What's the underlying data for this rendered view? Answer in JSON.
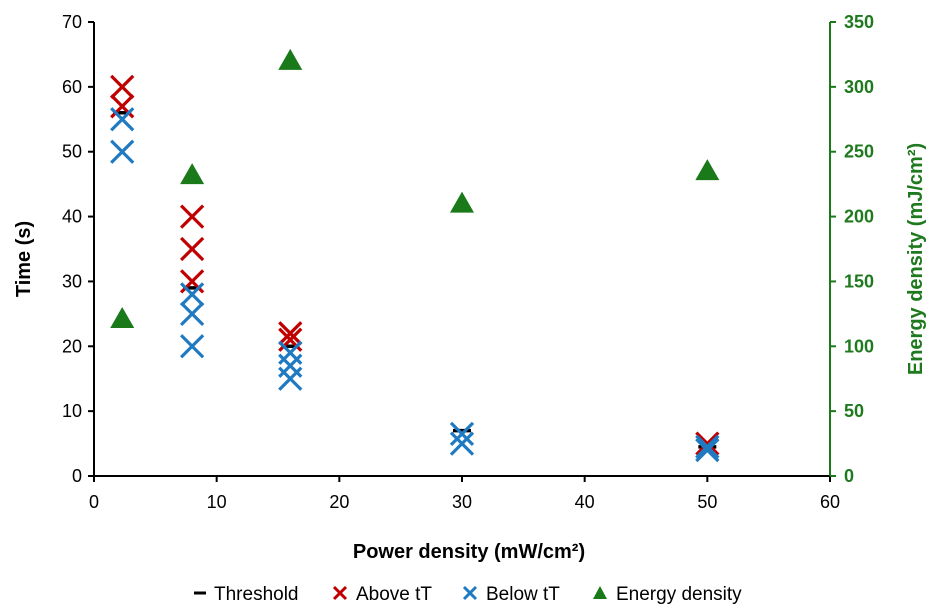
{
  "chart_data": {
    "type": "scatter",
    "xlabel": "Power density (mW/cm²)",
    "ylabel": "Time (s)",
    "y2label": "Energy density  (mJ/cm²)",
    "xlim": [
      0,
      60
    ],
    "ylim": [
      0,
      70
    ],
    "y2lim": [
      0,
      350
    ],
    "xticks": [
      "0",
      "10",
      "20",
      "30",
      "40",
      "50",
      "60"
    ],
    "yticks": [
      "0",
      "10",
      "20",
      "30",
      "40",
      "50",
      "60",
      "70"
    ],
    "y2ticks": [
      "0",
      "50",
      "100",
      "150",
      "200",
      "250",
      "300",
      "350"
    ],
    "legend_position": "bottom",
    "colors": {
      "threshold": "#000000",
      "above": "#c00000",
      "below": "#1f7ac2",
      "energy": "#1a7a1a"
    },
    "series": [
      {
        "name": "Threshold",
        "marker": "dash",
        "axis": "left",
        "points": [
          [
            2.3,
            56
          ],
          [
            8,
            29
          ],
          [
            16,
            20
          ],
          [
            30,
            7
          ],
          [
            50,
            4.5
          ]
        ]
      },
      {
        "name": "Above tT",
        "marker": "x",
        "axis": "left",
        "points": [
          [
            2.3,
            60
          ],
          [
            2.3,
            57
          ],
          [
            8,
            40
          ],
          [
            8,
            35
          ],
          [
            8,
            30
          ],
          [
            16,
            22
          ],
          [
            16,
            21
          ],
          [
            50,
            5
          ]
        ]
      },
      {
        "name": "Below tT",
        "marker": "x",
        "axis": "left",
        "points": [
          [
            2.3,
            55
          ],
          [
            2.3,
            50
          ],
          [
            8,
            28
          ],
          [
            8,
            25
          ],
          [
            8,
            20
          ],
          [
            16,
            19
          ],
          [
            16,
            17
          ],
          [
            16,
            15
          ],
          [
            30,
            6.5
          ],
          [
            30,
            5
          ],
          [
            50,
            4.5
          ],
          [
            50,
            4
          ]
        ]
      },
      {
        "name": "Energy density",
        "marker": "triangle",
        "axis": "right",
        "points": [
          [
            2.3,
            121
          ],
          [
            8,
            232
          ],
          [
            16,
            320
          ],
          [
            30,
            210
          ],
          [
            50,
            235
          ]
        ]
      }
    ]
  }
}
